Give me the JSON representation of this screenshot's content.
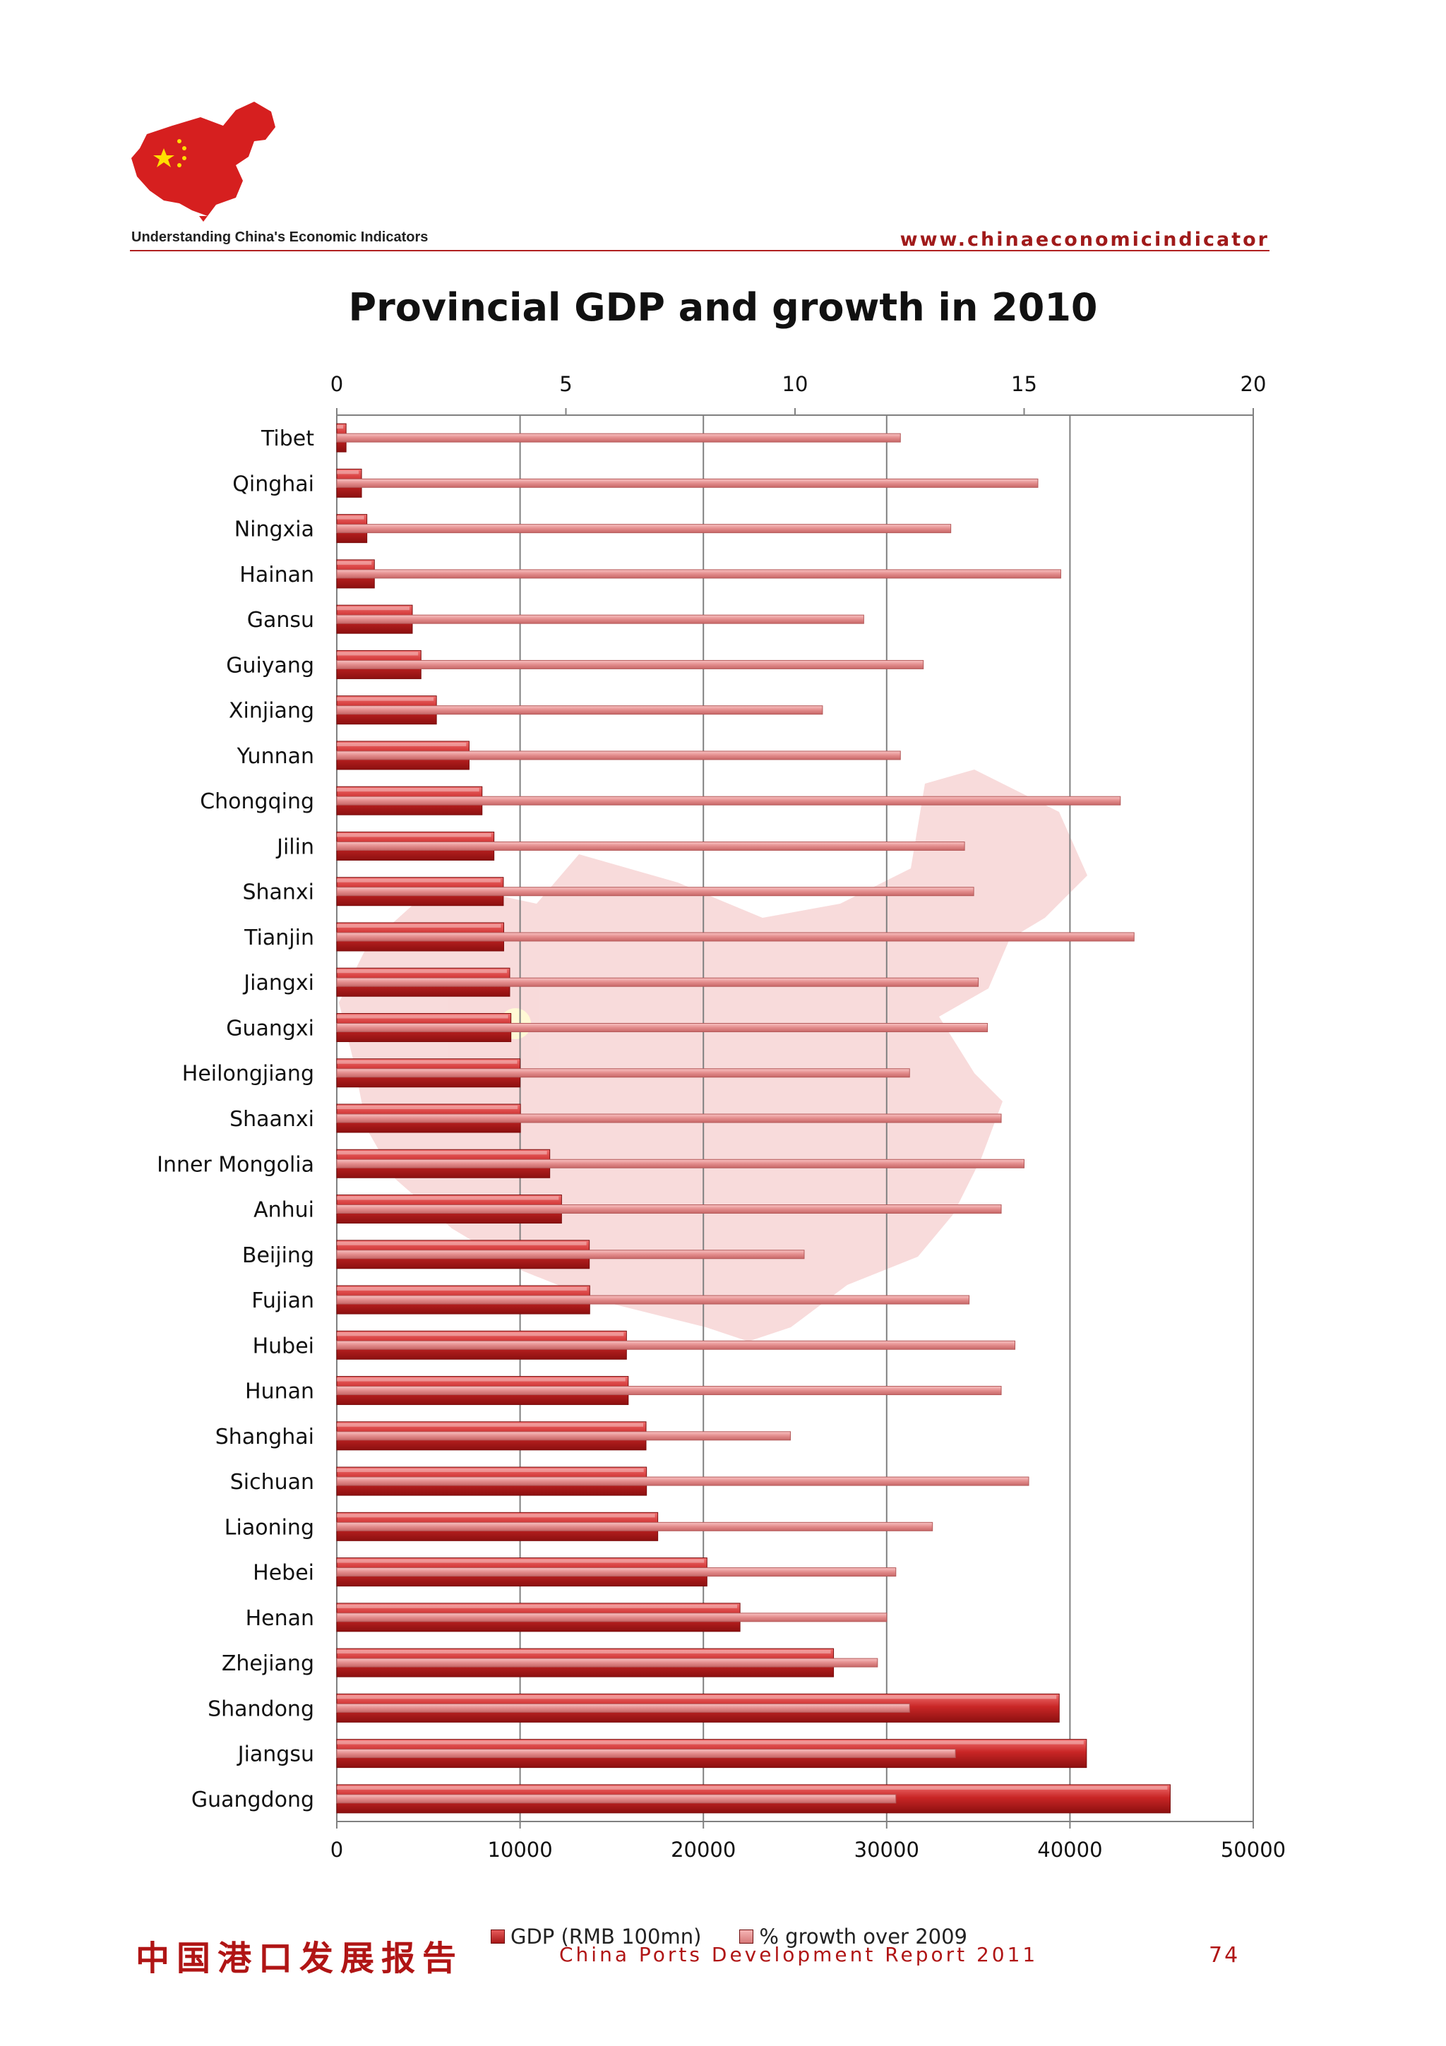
{
  "header": {
    "tagline": "Understanding China's Economic Indicators",
    "url": "www.chinaeconomicindicator",
    "logo_icon": "china-map-flag-logo"
  },
  "colors": {
    "gdp_bar": "#c92626",
    "growth_bar": "#e38c8c",
    "accent": "#b01515",
    "grid": "#808080"
  },
  "chart_data": {
    "type": "bar",
    "orientation": "horizontal",
    "title": "Provincial GDP and growth in 2010",
    "categories": [
      "Tibet",
      "Qinghai",
      "Ningxia",
      "Hainan",
      "Gansu",
      "Guiyang",
      "Xinjiang",
      "Yunnan",
      "Chongqing",
      "Jilin",
      "Shanxi",
      "Tianjin",
      "Jiangxi",
      "Guangxi",
      "Heilongjiang",
      "Shaanxi",
      "Inner Mongolia",
      "Anhui",
      "Beijing",
      "Fujian",
      "Hubei",
      "Hunan",
      "Shanghai",
      "Sichuan",
      "Liaoning",
      "Hebei",
      "Henan",
      "Zhejiang",
      "Shandong",
      "Jiangsu",
      "Guangdong"
    ],
    "series": [
      {
        "name": "GDP (RMB 100mn)",
        "axis": "bottom",
        "values": [
          507,
          1350,
          1643,
          2052,
          4121,
          4594,
          5437,
          7220,
          7926,
          8577,
          9088,
          9109,
          9435,
          9502,
          10000,
          10021,
          11620,
          12263,
          13778,
          13801,
          15806,
          15902,
          16872,
          16898,
          17513,
          20197,
          22000,
          27102,
          39416,
          40903,
          45472
        ]
      },
      {
        "name": "% growth over 2009",
        "axis": "top",
        "values": [
          12.3,
          15.3,
          13.4,
          15.8,
          11.5,
          12.8,
          10.6,
          12.3,
          17.1,
          13.7,
          13.9,
          17.4,
          14.0,
          14.2,
          12.5,
          14.5,
          15.0,
          14.5,
          10.2,
          13.8,
          14.8,
          14.5,
          9.9,
          15.1,
          13.0,
          12.2,
          12.0,
          11.8,
          12.5,
          13.5,
          12.2
        ]
      }
    ],
    "x_bottom": {
      "ticks": [
        0,
        10000,
        20000,
        30000,
        40000,
        50000
      ],
      "range": [
        0,
        50000
      ]
    },
    "x_top": {
      "ticks": [
        0,
        5,
        10,
        15,
        20
      ],
      "range": [
        0,
        20
      ]
    },
    "grid": true,
    "legend_position": "bottom"
  },
  "legend": {
    "gdp_label": "GDP (RMB 100mn)",
    "growth_label": "% growth over 2009"
  },
  "footer": {
    "chinese_title": "中国港口发展报告",
    "report_title": "China Ports Development Report 2011",
    "page_number": "74"
  }
}
